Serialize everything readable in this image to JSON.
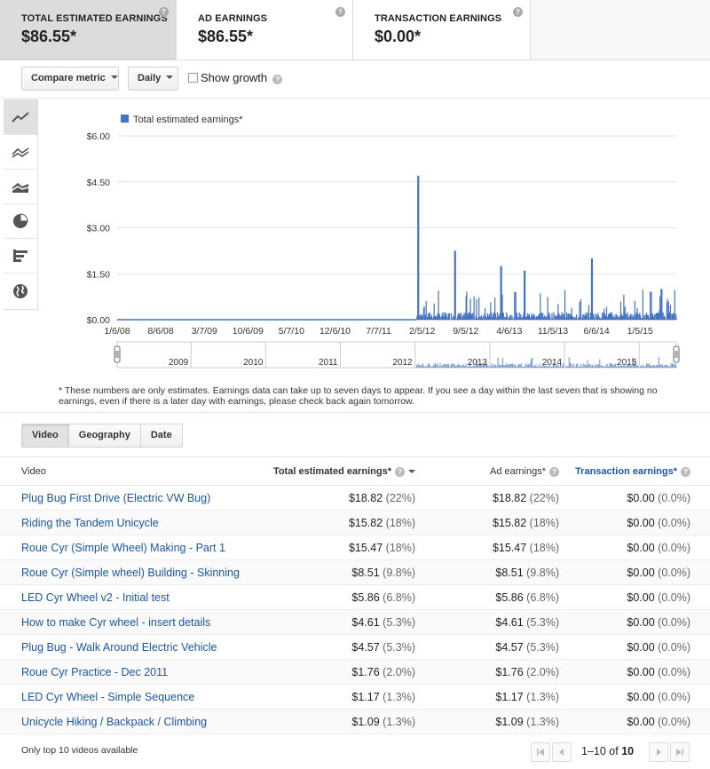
{
  "metrics": [
    {
      "label": "TOTAL ESTIMATED EARNINGS",
      "value": "$86.55*",
      "selected": true
    },
    {
      "label": "AD EARNINGS",
      "value": "$86.55*",
      "selected": false
    },
    {
      "label": "TRANSACTION EARNINGS",
      "value": "$0.00*",
      "selected": false
    }
  ],
  "toolbar": {
    "compare_metric": "Compare metric",
    "interval": "Daily",
    "show_growth": "Show growth",
    "show_growth_checked": false
  },
  "chart_tools": [
    "line-chart-icon",
    "multi-line-chart-icon",
    "stacked-area-icon",
    "pie-chart-icon",
    "bar-chart-icon",
    "map-globe-icon"
  ],
  "chart_data": {
    "type": "bar",
    "legend": "Total estimated earnings*",
    "legend_position": "top-left",
    "color": "#4472c4",
    "x_tick_labels": [
      "1/6/08",
      "8/6/08",
      "3/7/09",
      "10/6/09",
      "5/7/10",
      "12/6/10",
      "7/7/11",
      "2/5/12",
      "9/5/12",
      "4/6/13",
      "11/5/13",
      "6/6/14",
      "1/5/15"
    ],
    "y_tick_labels": [
      "$0.00",
      "$1.50",
      "$3.00",
      "$4.50",
      "$6.00"
    ],
    "ylim": [
      0,
      6
    ],
    "grid": true,
    "daily_start_index": 0,
    "notable_peaks": [
      {
        "x": "2012-01-12",
        "y": 4.7
      },
      {
        "x": "2012-07-10",
        "y": 2.25
      },
      {
        "x": "2013-02-20",
        "y": 1.75
      },
      {
        "x": "2013-06-15",
        "y": 1.6
      },
      {
        "x": "2014-05-10",
        "y": 2.0
      },
      {
        "x": "2015-04-15",
        "y": 1.0
      }
    ],
    "navigator_years": [
      "2009",
      "2010",
      "2011",
      "2012",
      "2013",
      "2014",
      "2015"
    ]
  },
  "notes": "* These numbers are only estimates. Earnings data can take up to seven days to appear. If you see a day within the last seven that is showing no earnings, even if there is a later day with earnings, please check back again tomorrow.",
  "tabs": [
    {
      "label": "Video",
      "active": true
    },
    {
      "label": "Geography",
      "active": false
    },
    {
      "label": "Date",
      "active": false
    }
  ],
  "table": {
    "headers": {
      "video": "Video",
      "total": "Total estimated earnings*",
      "ad": "Ad earnings*",
      "transaction": "Transaction earnings*"
    },
    "rows": [
      {
        "video": "Plug Bug First Drive (Electric VW Bug)",
        "total": "$18.82",
        "total_pct": "(22%)",
        "ad": "$18.82",
        "ad_pct": "(22%)",
        "tr": "$0.00",
        "tr_pct": "(0.0%)"
      },
      {
        "video": "Riding the Tandem Unicycle",
        "total": "$15.82",
        "total_pct": "(18%)",
        "ad": "$15.82",
        "ad_pct": "(18%)",
        "tr": "$0.00",
        "tr_pct": "(0.0%)"
      },
      {
        "video": "Roue Cyr (Simple Wheel) Making - Part 1",
        "total": "$15.47",
        "total_pct": "(18%)",
        "ad": "$15.47",
        "ad_pct": "(18%)",
        "tr": "$0.00",
        "tr_pct": "(0.0%)"
      },
      {
        "video": "Roue Cyr (Simple wheel) Building - Skinning",
        "total": "$8.51",
        "total_pct": "(9.8%)",
        "ad": "$8.51",
        "ad_pct": "(9.8%)",
        "tr": "$0.00",
        "tr_pct": "(0.0%)"
      },
      {
        "video": "LED Cyr Wheel v2 - Initial test",
        "total": "$5.86",
        "total_pct": "(6.8%)",
        "ad": "$5.86",
        "ad_pct": "(6.8%)",
        "tr": "$0.00",
        "tr_pct": "(0.0%)"
      },
      {
        "video": "How to make Cyr wheel - insert details",
        "total": "$4.61",
        "total_pct": "(5.3%)",
        "ad": "$4.61",
        "ad_pct": "(5.3%)",
        "tr": "$0.00",
        "tr_pct": "(0.0%)"
      },
      {
        "video": "Plug Bug - Walk Around Electric Vehicle",
        "total": "$4.57",
        "total_pct": "(5.3%)",
        "ad": "$4.57",
        "ad_pct": "(5.3%)",
        "tr": "$0.00",
        "tr_pct": "(0.0%)"
      },
      {
        "video": "Roue Cyr Practice - Dec 2011",
        "total": "$1.76",
        "total_pct": "(2.0%)",
        "ad": "$1.76",
        "ad_pct": "(2.0%)",
        "tr": "$0.00",
        "tr_pct": "(0.0%)"
      },
      {
        "video": "LED Cyr Wheel - Simple Sequence",
        "total": "$1.17",
        "total_pct": "(1.3%)",
        "ad": "$1.17",
        "ad_pct": "(1.3%)",
        "tr": "$0.00",
        "tr_pct": "(0.0%)"
      },
      {
        "video": "Unicycle Hiking / Backpack / Climbing",
        "total": "$1.09",
        "total_pct": "(1.3%)",
        "ad": "$1.09",
        "ad_pct": "(1.3%)",
        "tr": "$0.00",
        "tr_pct": "(0.0%)"
      }
    ]
  },
  "footer": {
    "note": "Only top 10 videos available",
    "range_prefix": "1–10",
    "range_of": "of",
    "range_total": "10"
  }
}
